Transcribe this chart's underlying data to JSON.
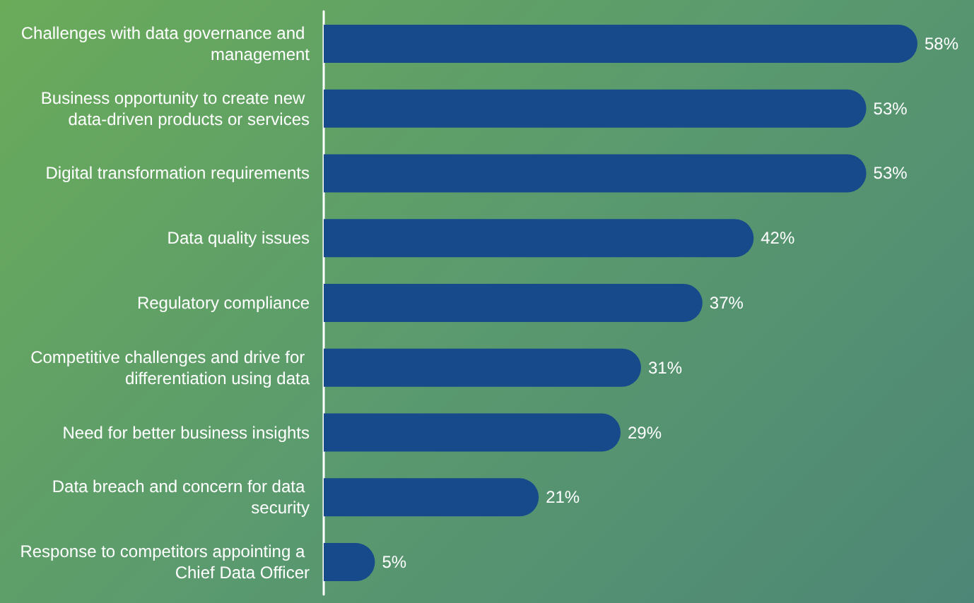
{
  "chart_data": {
    "type": "bar",
    "orientation": "horizontal",
    "categories": [
      "Challenges with data governance and management",
      "Business opportunity to create new data-driven products or services",
      "Digital transformation requirements",
      "Data quality issues",
      "Regulatory compliance",
      "Competitive challenges and drive for differentiation using data",
      "Need for better business insights",
      "Data breach and concern for data security",
      "Response to competitors appointing a Chief Data Officer"
    ],
    "values": [
      58,
      53,
      53,
      42,
      37,
      31,
      29,
      21,
      5
    ],
    "value_labels": [
      "58%",
      "53%",
      "53%",
      "42%",
      "37%",
      "31%",
      "29%",
      "21%",
      "5%"
    ],
    "color": "#174a8b",
    "grid": false
  }
}
